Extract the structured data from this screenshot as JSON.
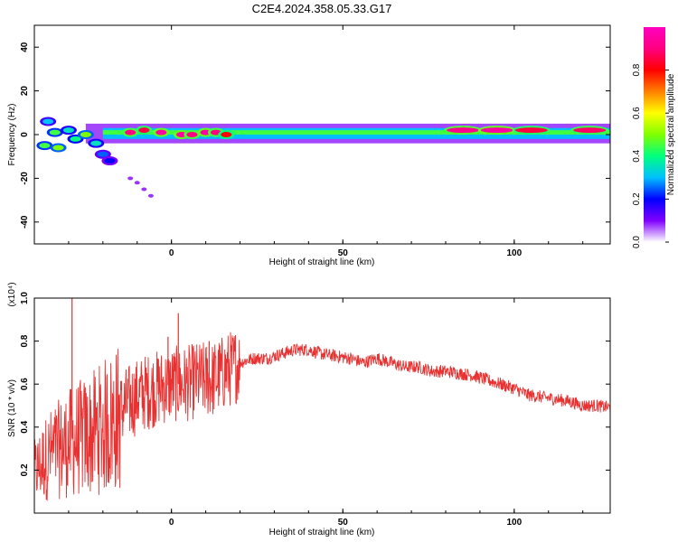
{
  "chart_data": [
    {
      "type": "heatmap",
      "title": "C2E4.2024.358.05.33.G17",
      "xlabel": "Height of straight line (km)",
      "ylabel": "Frequency (Hz)",
      "xlim": [
        -40,
        128
      ],
      "ylim": [
        -50,
        50
      ],
      "xticks": [
        "0",
        "50",
        "100"
      ],
      "yticks": [
        "-40",
        "-20",
        "0",
        "20",
        "40"
      ],
      "colorbar": {
        "label": "Normalized spectral amplitude",
        "range": [
          0,
          1
        ],
        "ticks": [
          "0.0",
          "0.2",
          "0.4",
          "0.6",
          "0.8"
        ],
        "colors": [
          "#ffffff",
          "#8000ff",
          "#0000ff",
          "#00c0ff",
          "#00ff80",
          "#80ff00",
          "#ffff00",
          "#ff8000",
          "#ff0000",
          "#ff0080",
          "#ff00c0"
        ]
      },
      "band": {
        "center_freq": 1,
        "description": "dominant signal band near 0 Hz across all heights"
      },
      "blobs": [
        {
          "x": -36,
          "y": 6,
          "v": 0.3
        },
        {
          "x": -34,
          "y": 1,
          "v": 0.45
        },
        {
          "x": -37,
          "y": -5,
          "v": 0.45
        },
        {
          "x": -33,
          "y": -6,
          "v": 0.5
        },
        {
          "x": -30,
          "y": 2,
          "v": 0.35
        },
        {
          "x": -28,
          "y": -2,
          "v": 0.4
        },
        {
          "x": -25,
          "y": 0,
          "v": 0.5
        },
        {
          "x": -22,
          "y": -4,
          "v": 0.35
        },
        {
          "x": -20,
          "y": -9,
          "v": 0.25
        },
        {
          "x": -18,
          "y": -12,
          "v": 0.2
        },
        {
          "x": -12,
          "y": 1,
          "v": 0.9
        },
        {
          "x": -8,
          "y": 2,
          "v": 0.85
        },
        {
          "x": -3,
          "y": 1,
          "v": 0.95
        },
        {
          "x": 3,
          "y": 0,
          "v": 0.95
        },
        {
          "x": 6,
          "y": 0,
          "v": 0.9
        },
        {
          "x": 10,
          "y": 1,
          "v": 0.95
        },
        {
          "x": 13,
          "y": 1,
          "v": 0.9
        },
        {
          "x": 16,
          "y": 0,
          "v": 0.8
        },
        {
          "x": 85,
          "y": 2,
          "v": 0.92
        },
        {
          "x": 95,
          "y": 2,
          "v": 0.95
        },
        {
          "x": 105,
          "y": 2,
          "v": 0.85
        },
        {
          "x": 122,
          "y": 2,
          "v": 0.88
        }
      ],
      "faint_tail": [
        {
          "x": -12,
          "y": -20
        },
        {
          "x": -10,
          "y": -22
        },
        {
          "x": -8,
          "y": -25
        },
        {
          "x": -6,
          "y": -28
        }
      ]
    },
    {
      "type": "line",
      "xlabel": "Height of straight line (km)",
      "ylabel": "SNR (10 * v/v)",
      "y_multiplier": "(x10⁴)",
      "xlim": [
        -40,
        128
      ],
      "ylim": [
        0,
        1.0
      ],
      "xticks": [
        "0",
        "50",
        "100"
      ],
      "yticks": [
        "0.2",
        "0.4",
        "0.6",
        "0.8",
        "1.0"
      ],
      "color": "#e83232",
      "series": [
        {
          "x": [
            -40,
            -36,
            -32,
            -28,
            -24,
            -20,
            -16,
            -12,
            -8,
            -4,
            0,
            4,
            8,
            12,
            16,
            20,
            24,
            28,
            32,
            36,
            40,
            44,
            48,
            52,
            56,
            60,
            64,
            68,
            72,
            76,
            80,
            84,
            88,
            92,
            96,
            100,
            104,
            108,
            112,
            116,
            120,
            124,
            128
          ],
          "y": [
            0.2,
            0.28,
            0.32,
            0.36,
            0.38,
            0.42,
            0.46,
            0.52,
            0.56,
            0.58,
            0.6,
            0.6,
            0.62,
            0.62,
            0.66,
            0.7,
            0.72,
            0.72,
            0.74,
            0.76,
            0.76,
            0.74,
            0.73,
            0.72,
            0.7,
            0.72,
            0.7,
            0.68,
            0.68,
            0.66,
            0.66,
            0.65,
            0.64,
            0.62,
            0.6,
            0.58,
            0.55,
            0.54,
            0.53,
            0.52,
            0.5,
            0.5,
            0.49
          ]
        }
      ],
      "spikes": [
        {
          "x": -29,
          "y": 1.0
        },
        {
          "x": 2,
          "y": 0.93
        },
        {
          "x": -1,
          "y": 0.82
        },
        {
          "x": 11,
          "y": 0.8
        }
      ],
      "noise_amplitude": [
        0.25,
        0.18,
        0.03
      ]
    }
  ]
}
